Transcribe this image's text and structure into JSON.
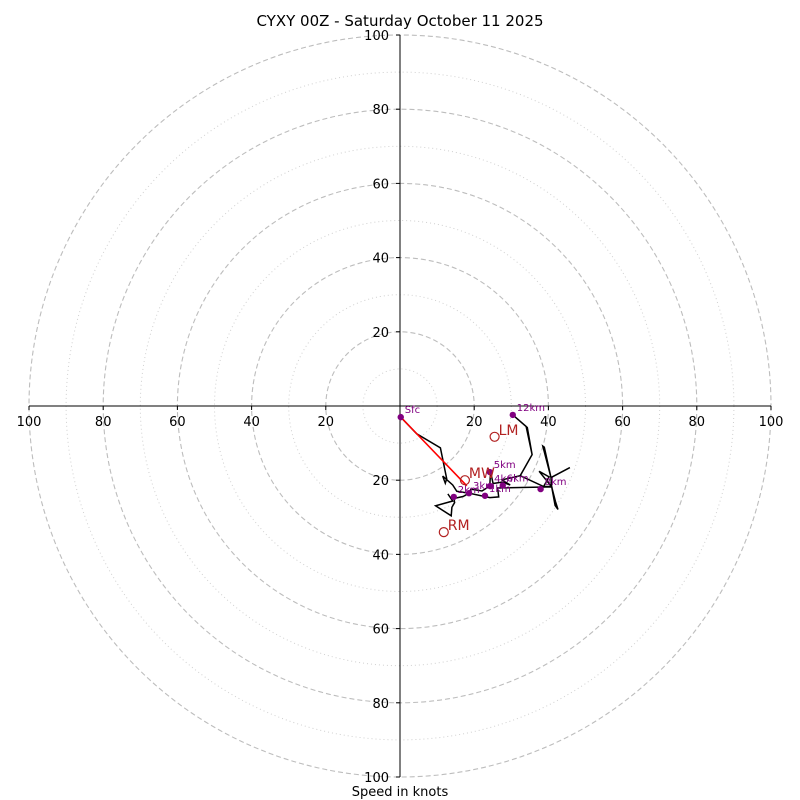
{
  "chart_data": {
    "type": "hodograph",
    "title": "CYXY 00Z - Saturday October 11 2025",
    "xlabel": "Speed in knots",
    "range": [
      -100,
      100
    ],
    "ring_major": [
      20,
      40,
      60,
      80,
      100
    ],
    "ring_minor": [
      10,
      30,
      50,
      70,
      90
    ],
    "x_ticks": [
      {
        "value": -100,
        "label": "100"
      },
      {
        "value": -80,
        "label": "80"
      },
      {
        "value": -60,
        "label": "60"
      },
      {
        "value": -40,
        "label": "40"
      },
      {
        "value": -20,
        "label": "20"
      },
      {
        "value": 20,
        "label": "20"
      },
      {
        "value": 40,
        "label": "40"
      },
      {
        "value": 60,
        "label": "60"
      },
      {
        "value": 80,
        "label": "80"
      },
      {
        "value": 100,
        "label": "100"
      }
    ],
    "y_ticks": [
      {
        "value": 100,
        "label": "100"
      },
      {
        "value": 80,
        "label": "80"
      },
      {
        "value": 60,
        "label": "60"
      },
      {
        "value": 40,
        "label": "40"
      },
      {
        "value": 20,
        "label": "20"
      },
      {
        "value": -20,
        "label": "20"
      },
      {
        "value": -40,
        "label": "40"
      },
      {
        "value": -60,
        "label": "60"
      },
      {
        "value": -80,
        "label": "80"
      },
      {
        "value": -100,
        "label": "100"
      }
    ],
    "trace": [
      [
        0.2,
        -3.0
      ],
      [
        4.5,
        -7.5
      ],
      [
        10.9,
        -11.3
      ],
      [
        12.6,
        -19.6
      ],
      [
        12.2,
        -20.8
      ],
      [
        11.5,
        -18.9
      ],
      [
        14.2,
        -21.3
      ],
      [
        15.3,
        -23.0
      ],
      [
        18.6,
        -23.5
      ],
      [
        19.1,
        -22.4
      ],
      [
        22.1,
        -22.9
      ],
      [
        24.2,
        -21.6
      ],
      [
        24.4,
        -17.7
      ],
      [
        25.1,
        -20.9
      ],
      [
        27.5,
        -20.5
      ],
      [
        29.7,
        -21.3
      ],
      [
        27.5,
        -19.9
      ],
      [
        32.4,
        -18.8
      ],
      [
        35.6,
        -13.1
      ],
      [
        34.3,
        -5.8
      ],
      [
        30.4,
        -2.4
      ],
      [
        34.0,
        -5.5
      ],
      [
        35.6,
        -13.1
      ],
      [
        32.4,
        -18.8
      ],
      [
        38.7,
        -21.7
      ],
      [
        40.8,
        -21.7
      ],
      [
        37.5,
        -17.6
      ],
      [
        40.2,
        -19.1
      ],
      [
        38.7,
        -21.7
      ],
      [
        40.8,
        -21.7
      ],
      [
        40.7,
        -19.3
      ],
      [
        38.5,
        -10.8
      ],
      [
        38.9,
        -11.1
      ],
      [
        40.7,
        -19.3
      ],
      [
        45.8,
        -16.6
      ],
      [
        40.7,
        -19.3
      ],
      [
        40.9,
        -21.8
      ],
      [
        41.9,
        -25.7
      ],
      [
        42.6,
        -27.9
      ],
      [
        41.8,
        -26.8
      ],
      [
        40.9,
        -21.8
      ],
      [
        26.3,
        -22.1
      ],
      [
        26.6,
        -24.5
      ],
      [
        24.2,
        -24.7
      ],
      [
        18.6,
        -23.5
      ],
      [
        17.0,
        -24.4
      ],
      [
        14.6,
        -24.9
      ],
      [
        14.7,
        -26.1
      ],
      [
        14.0,
        -27.3
      ],
      [
        13.8,
        -29.6
      ],
      [
        9.6,
        -26.9
      ],
      [
        14.2,
        -25.6
      ],
      [
        13.1,
        -24.0
      ],
      [
        12.9,
        -23.7
      ]
    ],
    "height_markers": [
      {
        "label": "Sfc",
        "u": 0.2,
        "v": -3.0
      },
      {
        "label": "1km",
        "u": 22.9,
        "v": -24.2
      },
      {
        "label": "2km",
        "u": 14.5,
        "v": -24.5
      },
      {
        "label": "3km",
        "u": 18.6,
        "v": -23.5
      },
      {
        "label": "4km",
        "u": 24.3,
        "v": -21.6
      },
      {
        "label": "5km",
        "u": 24.2,
        "v": -17.8
      },
      {
        "label": "6km",
        "u": 27.7,
        "v": -21.4
      },
      {
        "label": "8km",
        "u": 37.9,
        "v": -22.4
      },
      {
        "label": "12km",
        "u": 30.4,
        "v": -2.4
      }
    ],
    "storm_motions": [
      {
        "label": "LM",
        "u": 25.5,
        "v": -8.3
      },
      {
        "label": "MW",
        "u": 17.5,
        "v": -20.0
      },
      {
        "label": "RM",
        "u": 11.8,
        "v": -34.0
      }
    ],
    "shear_vector": {
      "from": [
        0.2,
        -3.0
      ],
      "to": [
        18.0,
        -21.5
      ]
    },
    "colors": {
      "trace": "#000000",
      "marker": "#800080",
      "storm": "#b22222",
      "shear": "#ff0000",
      "ring": "#bdbdbd",
      "axis": "#000000"
    }
  }
}
